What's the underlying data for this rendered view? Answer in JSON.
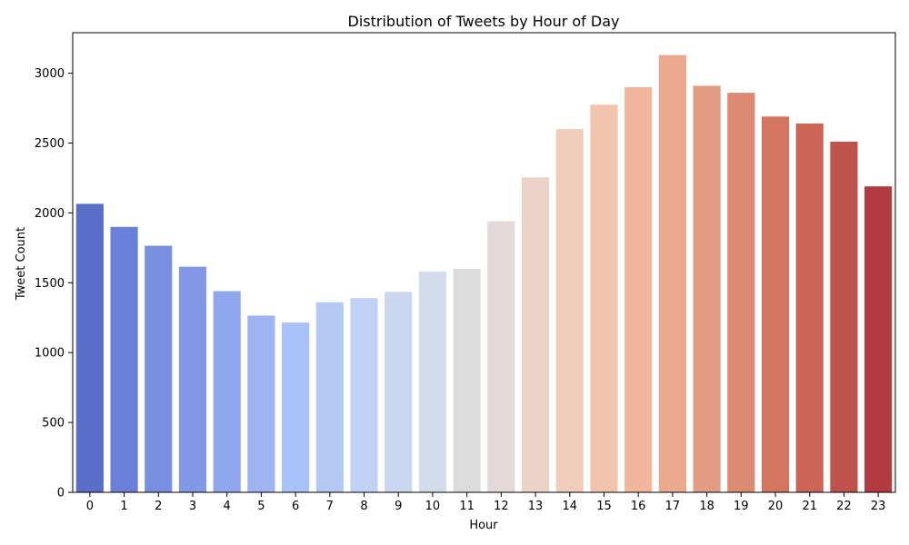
{
  "chart_data": {
    "type": "bar",
    "title": "Distribution of Tweets by Hour of Day",
    "xlabel": "Hour",
    "ylabel": "Tweet Count",
    "categories": [
      "0",
      "1",
      "2",
      "3",
      "4",
      "5",
      "6",
      "7",
      "8",
      "9",
      "10",
      "11",
      "12",
      "13",
      "14",
      "15",
      "16",
      "17",
      "18",
      "19",
      "20",
      "21",
      "22",
      "23"
    ],
    "values": [
      2065,
      1900,
      1765,
      1615,
      1440,
      1265,
      1215,
      1360,
      1390,
      1435,
      1580,
      1600,
      1940,
      2255,
      2600,
      2775,
      2900,
      3130,
      2910,
      2860,
      2690,
      2640,
      2510,
      2190
    ],
    "ylim": [
      0,
      3290
    ],
    "yticks": [
      0,
      500,
      1000,
      1500,
      2000,
      2500,
      3000
    ],
    "colors": [
      "#5a6ec8",
      "#6a80d8",
      "#788fe0",
      "#8298e6",
      "#8ea7ee",
      "#9db4f0",
      "#a8c1f8",
      "#b3c8f3",
      "#bfd2f6",
      "#c9d7f0",
      "#d3dcea",
      "#dddcdd",
      "#e5d8d8",
      "#ecd3c8",
      "#f0ccbb",
      "#f2c3ad",
      "#f0b79c",
      "#ebaa8e",
      "#e39c84",
      "#dc8a72",
      "#d4765f",
      "#cc6455",
      "#c0524c",
      "#b23a40"
    ],
    "grid": false,
    "legend": "none"
  }
}
